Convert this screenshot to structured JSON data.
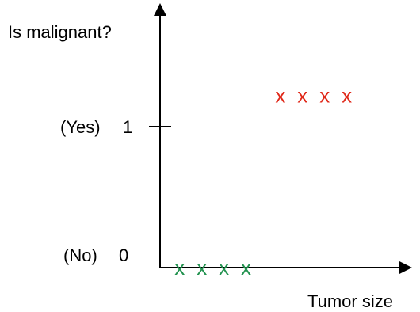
{
  "chart_data": {
    "type": "scatter",
    "title": "",
    "xlabel": "Tumor size",
    "ylabel": "Is malignant?",
    "y_ticks": [
      {
        "value": 1,
        "label": "1",
        "category": "(Yes)"
      },
      {
        "value": 0,
        "label": "0",
        "category": "(No)"
      }
    ],
    "xlim": [
      0,
      10
    ],
    "ylim": [
      0,
      1.5
    ],
    "grid": false,
    "marker": "x",
    "series": [
      {
        "color": "#22924f",
        "x": [
          0.8,
          1.7,
          2.6,
          3.5
        ],
        "y": [
          0,
          0,
          0,
          0
        ]
      },
      {
        "color": "#e0291a",
        "x": [
          4.9,
          5.8,
          6.7,
          7.6
        ],
        "y": [
          1,
          1,
          1,
          1
        ]
      }
    ]
  }
}
